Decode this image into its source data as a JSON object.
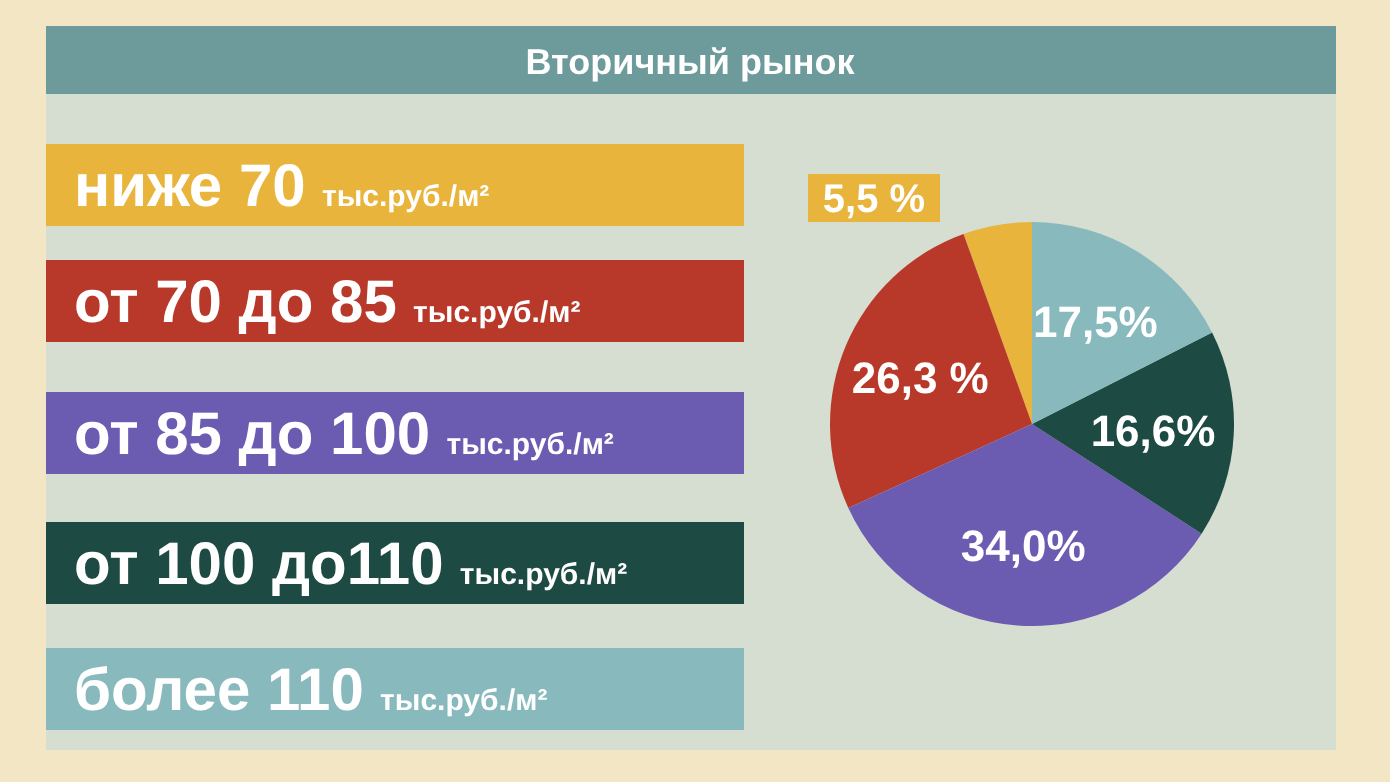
{
  "chart_data": {
    "type": "pie",
    "title": "Вторичный рынок",
    "categories": [
      "ниже 70 тыс.руб./м²",
      "от 70 до 85 тыс.руб./м²",
      "от 85 до 100 тыс.руб./м²",
      "от 100 до110 тыс.руб./м²",
      "более 110 тыс.руб./м²"
    ],
    "values": [
      5.5,
      26.3,
      34.0,
      16.6,
      17.5
    ],
    "value_labels": [
      "5,5 %",
      "26,3 %",
      "34,0%",
      "16,6%",
      "17,5%"
    ],
    "colors": [
      "#e9b43c",
      "#b8392a",
      "#6b5bb1",
      "#1e4a44",
      "#87b9bd"
    ],
    "legend": "left"
  }
}
